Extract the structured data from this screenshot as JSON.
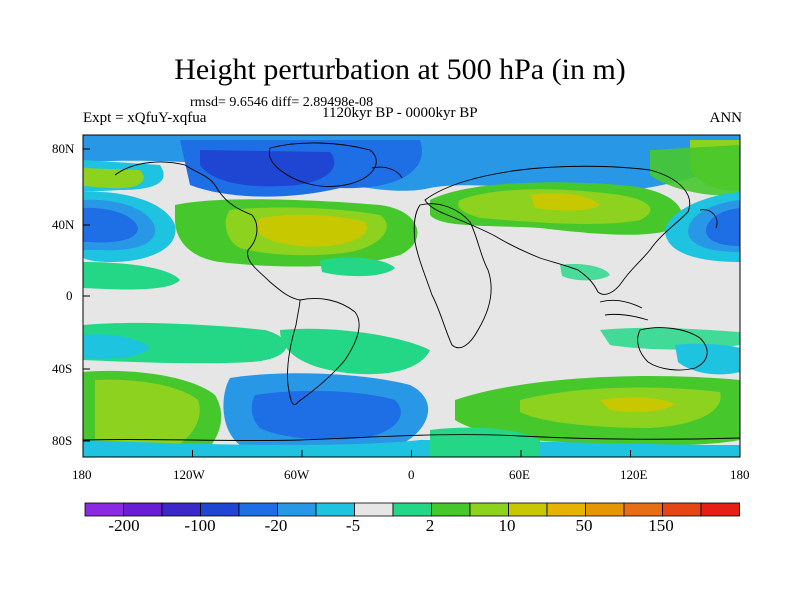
{
  "title": "Height perturbation at 500 hPa (in m)",
  "stats": "rmsd= 9.6546 diff= 2.89498e-08",
  "experiment": "Expt = xQfuY-xqfua",
  "period": "1120kyr BP - 0000kyr BP",
  "season": "ANN",
  "axes": {
    "lat_ticks": [
      "80N",
      "40N",
      "0",
      "40S",
      "80S"
    ],
    "lon_ticks": [
      "180",
      "120W",
      "60W",
      "0",
      "60E",
      "120E",
      "180"
    ]
  },
  "colorbar": {
    "colors": [
      "#8a2be2",
      "#6a1ed4",
      "#3c28c8",
      "#1e46d2",
      "#1e6ee6",
      "#2898e6",
      "#1ec3e0",
      "#e6e6e6",
      "#23d787",
      "#46c82d",
      "#8cd21e",
      "#c8c800",
      "#e6b400",
      "#e69600",
      "#e66e14",
      "#e64614",
      "#e61e14"
    ],
    "labels": [
      "-200",
      "-100",
      "-20",
      "-5",
      "2",
      "10",
      "50",
      "150"
    ]
  },
  "colors": {
    "neutral": "#e6e6e6",
    "white_band": "#ffffff",
    "coastline": "#000000"
  }
}
